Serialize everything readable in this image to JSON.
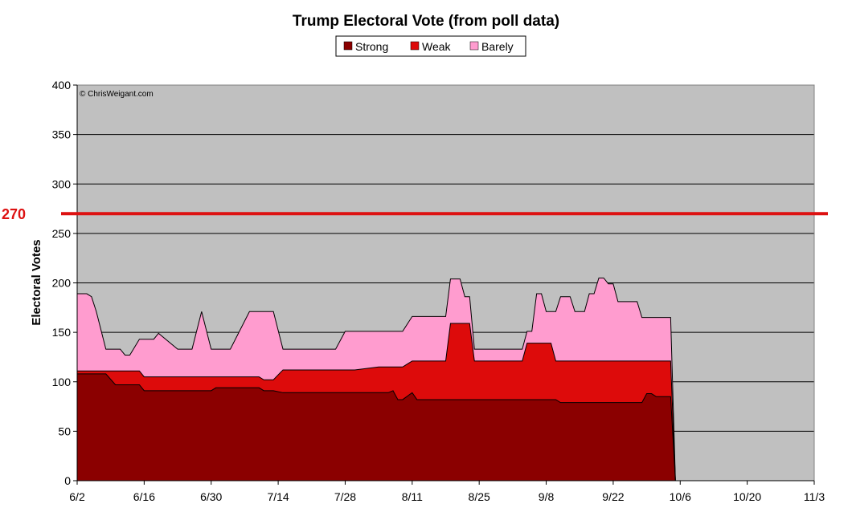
{
  "chart_data": {
    "type": "area",
    "title": "Trump Electoral Vote (from poll data)",
    "xlabel": "",
    "ylabel": "Electoral Votes",
    "credit": "© ChrisWeigant.com",
    "ylim": [
      0,
      400
    ],
    "yticks": [
      "0",
      "50",
      "100",
      "150",
      "200",
      "250",
      "300",
      "350",
      "400"
    ],
    "xlim": [
      "6/2",
      "11/3"
    ],
    "xtick_labels": [
      "6/2",
      "6/16",
      "6/30",
      "7/14",
      "7/28",
      "8/11",
      "8/25",
      "9/8",
      "9/22",
      "10/6",
      "10/20",
      "11/3"
    ],
    "grid": true,
    "stacked": true,
    "legend": {
      "position": "top-center",
      "entries": [
        "Strong",
        "Weak",
        "Barely"
      ]
    },
    "reference_line": {
      "value": 270,
      "label": "270",
      "color": "#dd1111"
    },
    "colors": {
      "Strong": "#8b0000",
      "Weak": "#dd0b0b",
      "Barely": "#ff9ccf",
      "plot_bg": "#c0c0c0",
      "outline": "#000000"
    },
    "x": [
      "6/2",
      "6/4",
      "6/5",
      "6/6",
      "6/8",
      "6/10",
      "6/11",
      "6/12",
      "6/13",
      "6/15",
      "6/16",
      "6/17",
      "6/18",
      "6/19",
      "6/23",
      "6/24",
      "6/25",
      "6/26",
      "6/28",
      "6/30",
      "7/1",
      "7/2",
      "7/4",
      "7/8",
      "7/10",
      "7/11",
      "7/12",
      "7/13",
      "7/15",
      "7/17",
      "7/25",
      "7/26",
      "7/28",
      "7/29",
      "7/30",
      "8/4",
      "8/5",
      "8/6",
      "8/7",
      "8/8",
      "8/9",
      "8/11",
      "8/12",
      "8/13",
      "8/14",
      "8/16",
      "8/17",
      "8/18",
      "8/19",
      "8/20",
      "8/21",
      "8/22",
      "8/23",
      "8/24",
      "8/25",
      "8/30",
      "8/31",
      "9/1",
      "9/3",
      "9/4",
      "9/5",
      "9/6",
      "9/7",
      "9/8",
      "9/9",
      "9/10",
      "9/11",
      "9/12",
      "9/13",
      "9/14",
      "9/15",
      "9/16",
      "9/17",
      "9/18",
      "9/19",
      "9/20",
      "9/21",
      "9/22",
      "9/23",
      "9/24",
      "9/25",
      "9/26",
      "9/27",
      "9/28",
      "9/29",
      "9/30",
      "10/1",
      "10/2",
      "10/3",
      "10/4",
      "10/5"
    ],
    "series": [
      {
        "name": "Strong",
        "values": [
          108,
          108,
          108,
          108,
          108,
          97,
          97,
          97,
          97,
          97,
          91,
          91,
          91,
          91,
          91,
          91,
          91,
          91,
          91,
          91,
          94,
          94,
          94,
          94,
          94,
          91,
          91,
          91,
          89,
          89,
          89,
          89,
          89,
          89,
          89,
          89,
          89,
          89,
          91,
          82,
          82,
          89,
          82,
          82,
          82,
          82,
          82,
          82,
          82,
          82,
          82,
          82,
          82,
          82,
          82,
          82,
          82,
          82,
          82,
          82,
          82,
          82,
          82,
          82,
          82,
          82,
          79,
          79,
          79,
          79,
          79,
          79,
          79,
          79,
          79,
          79,
          79,
          79,
          79,
          79,
          79,
          79,
          79,
          79,
          88,
          88,
          85,
          85,
          85,
          85,
          0
        ]
      },
      {
        "name": "Weak",
        "values": [
          111,
          111,
          111,
          111,
          111,
          111,
          111,
          111,
          111,
          111,
          105,
          105,
          105,
          105,
          105,
          105,
          105,
          105,
          105,
          105,
          105,
          105,
          105,
          105,
          105,
          102,
          102,
          102,
          112,
          112,
          112,
          112,
          112,
          112,
          112,
          115,
          115,
          115,
          115,
          115,
          115,
          121,
          121,
          121,
          121,
          121,
          121,
          121,
          159,
          159,
          159,
          159,
          159,
          121,
          121,
          121,
          121,
          121,
          121,
          139,
          139,
          139,
          139,
          139,
          139,
          121,
          121,
          121,
          121,
          121,
          121,
          121,
          121,
          121,
          121,
          121,
          121,
          121,
          121,
          121,
          121,
          121,
          121,
          121,
          121,
          121,
          121,
          121,
          121,
          121,
          0
        ]
      },
      {
        "name": "Barely",
        "values": [
          189,
          189,
          186,
          171,
          133,
          133,
          133,
          127,
          127,
          143,
          143,
          143,
          143,
          149,
          133,
          133,
          133,
          133,
          171,
          133,
          133,
          133,
          133,
          171,
          171,
          171,
          171,
          171,
          133,
          133,
          133,
          133,
          151,
          151,
          151,
          151,
          151,
          151,
          151,
          151,
          151,
          166,
          166,
          166,
          166,
          166,
          166,
          166,
          204,
          204,
          204,
          186,
          186,
          133,
          133,
          133,
          133,
          133,
          133,
          151,
          151,
          189,
          189,
          171,
          171,
          171,
          186,
          186,
          186,
          171,
          171,
          171,
          189,
          189,
          205,
          205,
          199,
          199,
          181,
          181,
          181,
          181,
          181,
          165,
          165,
          165,
          165,
          165,
          165,
          165,
          0
        ]
      }
    ]
  }
}
